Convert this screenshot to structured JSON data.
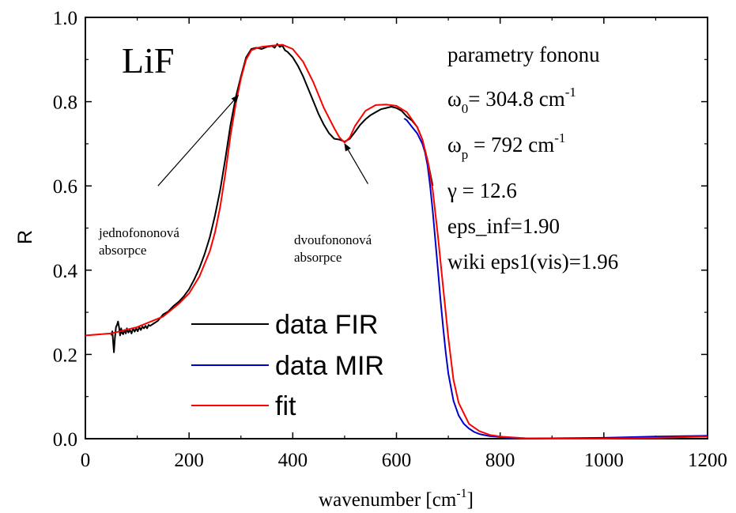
{
  "chart_data": {
    "type": "line",
    "title": "",
    "sample_label": "LiF",
    "xlabel": "wavenumber [cm",
    "xlabel_sup": "-1",
    "xlabel_end": "]",
    "ylabel": "R",
    "xlim": [
      0,
      1200
    ],
    "ylim": [
      0.0,
      1.0
    ],
    "xticks": [
      0,
      200,
      400,
      600,
      800,
      1000,
      1200
    ],
    "xtick_labels": [
      "0",
      "200",
      "400",
      "600",
      "800",
      "1000",
      "1200"
    ],
    "yticks": [
      0.0,
      0.2,
      0.4,
      0.6,
      0.8,
      1.0
    ],
    "ytick_labels": [
      "0.0",
      "0.2",
      "0.4",
      "0.6",
      "0.8",
      "1.0"
    ],
    "grid": false,
    "legend_position": "lower-left",
    "parameters": {
      "heading": "parametry fononu",
      "omega0_sym": "ω",
      "omega0_sub": "0",
      "omega0_text": "= 304.8 cm",
      "omega0_sup": "-1",
      "omegap_sym": "ω",
      "omegap_sub": "p",
      "omegap_text": " = 792 cm",
      "omegap_sup": "-1",
      "gamma": "γ = 12.6",
      "eps_inf": "eps_inf=1.90",
      "wiki": "wiki eps1(vis)=1.96"
    },
    "annotations": [
      {
        "line1": "jednofononová",
        "line2": "absorpce",
        "arrow_from": [
          140,
          0.6
        ],
        "arrow_to": [
          295,
          0.815
        ]
      },
      {
        "line1": "dvoufononová",
        "line2": "absorpce",
        "arrow_from": [
          545,
          0.605
        ],
        "arrow_to": [
          500,
          0.7
        ]
      }
    ],
    "series": [
      {
        "name": "data FIR",
        "color": "#000000",
        "x": [
          50,
          52,
          55,
          57,
          59,
          61,
          63,
          65,
          67,
          69,
          71,
          73,
          75,
          78,
          80,
          83,
          86,
          89,
          92,
          95,
          98,
          101,
          104,
          107,
          110,
          113,
          116,
          119,
          122,
          125,
          130,
          140,
          150,
          160,
          170,
          180,
          190,
          200,
          210,
          220,
          230,
          240,
          250,
          260,
          270,
          280,
          290,
          300,
          310,
          320,
          330,
          340,
          350,
          360,
          365,
          370,
          375,
          380,
          385,
          390,
          400,
          410,
          420,
          430,
          440,
          450,
          460,
          470,
          480,
          490,
          500,
          510,
          520,
          530,
          540,
          550,
          560,
          570,
          580,
          590,
          600,
          610,
          620,
          630,
          640,
          650,
          660,
          670
        ],
        "y": [
          0.245,
          0.255,
          0.205,
          0.24,
          0.265,
          0.27,
          0.278,
          0.265,
          0.245,
          0.262,
          0.25,
          0.248,
          0.258,
          0.25,
          0.262,
          0.252,
          0.258,
          0.25,
          0.262,
          0.254,
          0.262,
          0.255,
          0.265,
          0.258,
          0.266,
          0.262,
          0.268,
          0.262,
          0.27,
          0.268,
          0.272,
          0.28,
          0.295,
          0.302,
          0.315,
          0.325,
          0.338,
          0.355,
          0.378,
          0.405,
          0.438,
          0.478,
          0.53,
          0.59,
          0.665,
          0.745,
          0.81,
          0.86,
          0.905,
          0.925,
          0.928,
          0.925,
          0.93,
          0.932,
          0.928,
          0.937,
          0.93,
          0.933,
          0.922,
          0.918,
          0.905,
          0.885,
          0.86,
          0.83,
          0.8,
          0.77,
          0.745,
          0.725,
          0.712,
          0.71,
          0.705,
          0.712,
          0.728,
          0.745,
          0.758,
          0.768,
          0.775,
          0.782,
          0.785,
          0.788,
          0.785,
          0.778,
          0.765,
          0.755,
          0.74,
          0.71,
          0.66,
          0.6
        ]
      },
      {
        "name": "data MIR",
        "color": "#0000cc",
        "x": [
          615,
          620,
          630,
          640,
          650,
          655,
          660,
          665,
          670,
          675,
          680,
          685,
          690,
          695,
          700,
          710,
          720,
          730,
          740,
          750,
          760,
          780,
          800,
          820,
          850,
          900,
          1000,
          1100,
          1200
        ],
        "y": [
          0.76,
          0.756,
          0.74,
          0.725,
          0.7,
          0.68,
          0.648,
          0.6,
          0.54,
          0.47,
          0.4,
          0.33,
          0.265,
          0.205,
          0.155,
          0.09,
          0.055,
          0.035,
          0.024,
          0.016,
          0.011,
          0.006,
          0.004,
          0.002,
          0.001,
          0.001,
          0.002,
          0.005,
          0.007
        ]
      },
      {
        "name": "fit",
        "color": "#ff0000",
        "x": [
          0,
          50,
          100,
          150,
          180,
          200,
          220,
          240,
          250,
          260,
          270,
          280,
          290,
          300,
          310,
          320,
          330,
          340,
          360,
          380,
          400,
          420,
          440,
          460,
          480,
          490,
          500,
          510,
          520,
          540,
          560,
          580,
          600,
          620,
          640,
          650,
          660,
          670,
          680,
          690,
          700,
          710,
          720,
          740,
          760,
          780,
          800,
          850,
          900,
          1000,
          1100,
          1200
        ],
        "y": [
          0.245,
          0.25,
          0.265,
          0.29,
          0.32,
          0.345,
          0.385,
          0.445,
          0.49,
          0.55,
          0.63,
          0.72,
          0.795,
          0.855,
          0.9,
          0.922,
          0.927,
          0.93,
          0.933,
          0.935,
          0.925,
          0.895,
          0.845,
          0.785,
          0.737,
          0.715,
          0.703,
          0.715,
          0.742,
          0.778,
          0.792,
          0.793,
          0.79,
          0.775,
          0.74,
          0.71,
          0.66,
          0.59,
          0.48,
          0.36,
          0.24,
          0.14,
          0.085,
          0.035,
          0.018,
          0.009,
          0.005,
          0.001,
          0.0,
          0.0,
          0.002,
          0.005
        ]
      }
    ]
  }
}
